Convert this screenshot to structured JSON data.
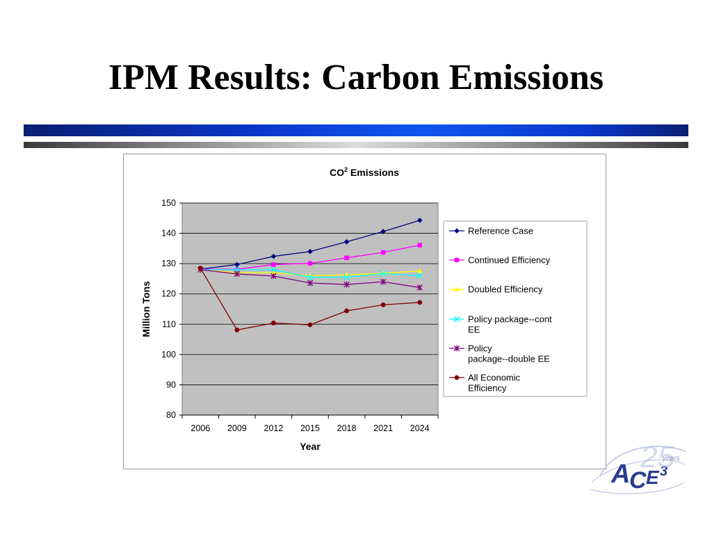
{
  "slide": {
    "title": "IPM Results: Carbon Emissions"
  },
  "colors": {
    "plot_bg": "#C0C0C0",
    "bar_blue": "#0a36c9"
  },
  "logo": {
    "text": "ACE3",
    "subtext": "25 Years"
  },
  "chart_data": {
    "type": "line",
    "title": "CO2 Emissions",
    "title_main": "CO",
    "title_sup": "2",
    "title_rest": " Emissions",
    "xlabel": "Year",
    "ylabel": "Million Tons",
    "ylim": [
      80,
      150
    ],
    "yticks": [
      80,
      90,
      100,
      110,
      120,
      130,
      140,
      150
    ],
    "categories": [
      "2006",
      "2009",
      "2012",
      "2015",
      "2018",
      "2021",
      "2024"
    ],
    "grid": true,
    "legend_position": "right",
    "series": [
      {
        "name": "Reference Case",
        "color": "#000080",
        "marker": "diamond",
        "values": [
          128.2,
          129.7,
          132.4,
          134.0,
          137.2,
          140.6,
          144.3
        ]
      },
      {
        "name": "Continued Efficiency",
        "color": "#FF00FF",
        "marker": "square",
        "values": [
          128.2,
          128.1,
          129.7,
          130.1,
          131.9,
          133.7,
          136.1
        ]
      },
      {
        "name": "Doubled Efficiency",
        "color": "#FFFF00",
        "marker": "triangle",
        "values": [
          128.0,
          127.0,
          127.0,
          126.0,
          126.3,
          126.8,
          127.6
        ]
      },
      {
        "name": "Policy package--cont EE",
        "color": "#00FFFF",
        "marker": "x",
        "values": [
          128.0,
          128.0,
          128.0,
          125.5,
          125.5,
          126.7,
          126.0
        ]
      },
      {
        "name": "Policy package--double EE",
        "color": "#800080",
        "marker": "star",
        "values": [
          128.0,
          126.6,
          125.9,
          123.6,
          123.1,
          124.0,
          122.1
        ]
      },
      {
        "name": "All Economic Efficiency",
        "color": "#800000",
        "marker": "circle",
        "values": [
          128.5,
          108.1,
          110.4,
          109.8,
          114.4,
          116.4,
          117.2
        ]
      }
    ]
  }
}
